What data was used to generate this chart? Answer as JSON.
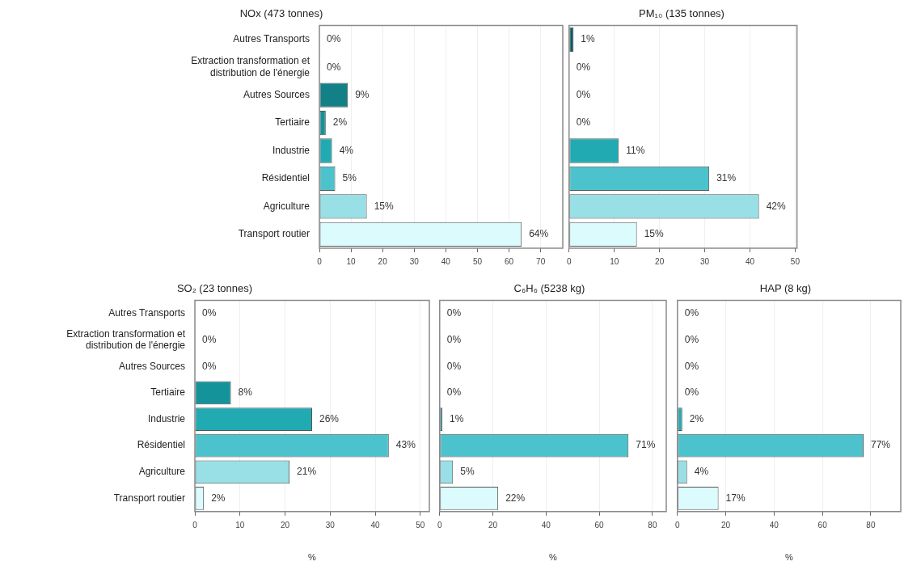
{
  "chart_data": [
    {
      "type": "bar",
      "orientation": "horizontal",
      "title": "NOx (473 tonnes)",
      "categories": [
        "Autres Transports",
        "Extraction transformation et distribution de l'énergie",
        "Autres Sources",
        "Tertiaire",
        "Industrie",
        "Résidentiel",
        "Agriculture",
        "Transport routier"
      ],
      "values": [
        0,
        0,
        9,
        2,
        4,
        5,
        15,
        64
      ],
      "value_labels": [
        "0%",
        "0%",
        "9%",
        "2%",
        "4%",
        "5%",
        "15%",
        "64%"
      ],
      "colors": [
        "#0b5e63",
        "#0a5258",
        "#137f87",
        "#14939a",
        "#22aab3",
        "#4cc3cc",
        "#98dfe6",
        "#dcfbfd"
      ],
      "xlim": [
        0,
        77
      ],
      "xticks": [
        0,
        10,
        20,
        30,
        40,
        50,
        60,
        70
      ],
      "grid": "x"
    },
    {
      "type": "bar",
      "orientation": "horizontal",
      "title": "PM₁₀ (135 tonnes)",
      "categories": [
        null,
        null,
        null,
        null,
        null,
        null,
        null,
        null
      ],
      "values": [
        1,
        0,
        0,
        0,
        11,
        31,
        42,
        15
      ],
      "value_labels": [
        "1%",
        "0%",
        "0%",
        "0%",
        "11%",
        "31%",
        "42%",
        "15%"
      ],
      "colors": [
        "#0b5e63",
        "#0a5258",
        "#137f87",
        "#14939a",
        "#22aab3",
        "#4cc3cc",
        "#98dfe6",
        "#dcfbfd"
      ],
      "xlim": [
        0,
        50.4
      ],
      "xticks": [
        0,
        10,
        20,
        30,
        40,
        50
      ],
      "grid": "x",
      "tick_labels": "x"
    },
    {
      "type": "bar",
      "orientation": "horizontal",
      "title": "SO₂ (23 tonnes)",
      "xlabel": "%",
      "categories": [
        "Autres Transports",
        "Extraction transformation et distribution de l'énergie",
        "Autres Sources",
        "Tertiaire",
        "Industrie",
        "Résidentiel",
        "Agriculture",
        "Transport routier"
      ],
      "values": [
        0,
        0,
        0,
        8,
        26,
        43,
        21,
        2
      ],
      "value_labels": [
        "0%",
        "0%",
        "0%",
        "8%",
        "26%",
        "43%",
        "21%",
        "2%"
      ],
      "colors": [
        "#0b5e63",
        "#0a5258",
        "#137f87",
        "#14939a",
        "#22aab3",
        "#4cc3cc",
        "#98dfe6",
        "#dcfbfd"
      ],
      "xlim": [
        0,
        52
      ],
      "xticks": [
        0,
        10,
        20,
        30,
        40,
        50
      ],
      "grid": "x"
    },
    {
      "type": "bar",
      "orientation": "horizontal",
      "title": "C₆H₆ (5238 kg)",
      "xlabel": "%",
      "categories": [
        null,
        null,
        null,
        null,
        null,
        null,
        null,
        null
      ],
      "values": [
        0,
        0,
        0,
        0,
        1,
        71,
        5,
        22
      ],
      "value_labels": [
        "0%",
        "0%",
        "0%",
        "0%",
        "1%",
        "71%",
        "5%",
        "22%"
      ],
      "colors": [
        "#0b5e63",
        "#0a5258",
        "#137f87",
        "#14939a",
        "#22aab3",
        "#4cc3cc",
        "#98dfe6",
        "#dcfbfd"
      ],
      "xlim": [
        0,
        85.2
      ],
      "xticks": [
        0,
        20,
        40,
        60,
        80
      ],
      "grid": "x",
      "tick_labels": "x"
    },
    {
      "type": "bar",
      "orientation": "horizontal",
      "title": "HAP (8 kg)",
      "xlabel": "%",
      "categories": [
        null,
        null,
        null,
        null,
        null,
        null,
        null,
        null
      ],
      "values": [
        0,
        0,
        0,
        0,
        2,
        77,
        4,
        17
      ],
      "value_labels": [
        "0%",
        "0%",
        "0%",
        "0%",
        "2%",
        "77%",
        "4%",
        "17%"
      ],
      "colors": [
        "#0b5e63",
        "#0a5258",
        "#137f87",
        "#14939a",
        "#22aab3",
        "#4cc3cc",
        "#98dfe6",
        "#dcfbfd"
      ],
      "xlim": [
        0,
        92.4
      ],
      "xticks": [
        0,
        20,
        40,
        60,
        80
      ],
      "grid": "x",
      "tick_labels": "x"
    }
  ]
}
